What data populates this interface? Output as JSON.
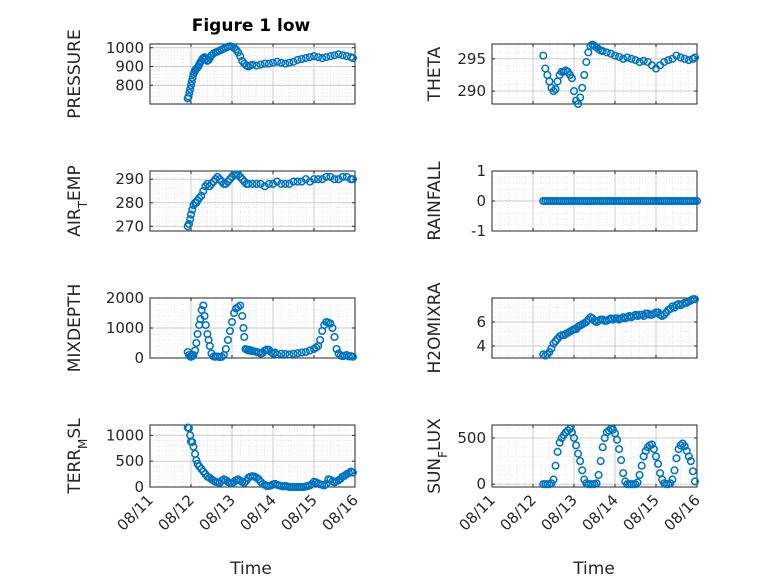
{
  "figure": {
    "title": "Figure 1 low",
    "xlabel": "Time",
    "x_ticks": [
      "08/11",
      "08/12",
      "08/13",
      "08/14",
      "08/15",
      "08/16"
    ],
    "marker_color": "#0072BD",
    "grid": "minor dotted"
  },
  "chart_data": [
    {
      "type": "scatter",
      "ylabel": "PRESSURE",
      "ylim": [
        700,
        1020
      ],
      "yticks": [
        800,
        900,
        1000
      ],
      "x": [
        11.92,
        11.94,
        11.96,
        11.98,
        12.0,
        12.02,
        12.04,
        12.06,
        12.08,
        12.1,
        12.12,
        12.14,
        12.16,
        12.18,
        12.2,
        12.22,
        12.25,
        12.28,
        12.3,
        12.33,
        12.36,
        12.4,
        12.43,
        12.46,
        12.5,
        12.55,
        12.6,
        12.65,
        12.7,
        12.75,
        12.8,
        12.85,
        12.9,
        12.95,
        13.0,
        13.05,
        13.1,
        13.15,
        13.2,
        13.25,
        13.3,
        13.35,
        13.4,
        13.45,
        13.5,
        13.6,
        13.7,
        13.8,
        13.9,
        14.0,
        14.1,
        14.2,
        14.3,
        14.4,
        14.5,
        14.6,
        14.7,
        14.8,
        14.9,
        15.0,
        15.1,
        15.2,
        15.3,
        15.4,
        15.5,
        15.6,
        15.7,
        15.8,
        15.9,
        15.95
      ],
      "y": [
        730,
        740,
        760,
        780,
        800,
        820,
        840,
        860,
        870,
        880,
        885,
        890,
        895,
        900,
        910,
        920,
        930,
        940,
        945,
        950,
        940,
        930,
        935,
        945,
        960,
        970,
        975,
        980,
        985,
        990,
        995,
        1000,
        1005,
        1008,
        1005,
        1000,
        990,
        975,
        955,
        930,
        915,
        905,
        900,
        905,
        910,
        905,
        910,
        915,
        915,
        920,
        925,
        920,
        915,
        920,
        925,
        935,
        940,
        945,
        950,
        955,
        950,
        945,
        950,
        955,
        960,
        965,
        960,
        955,
        950,
        945
      ]
    },
    {
      "type": "scatter",
      "ylabel": "THETA",
      "ylim": [
        288,
        297.3
      ],
      "yticks": [
        290,
        295
      ],
      "x": [
        12.25,
        12.3,
        12.35,
        12.4,
        12.45,
        12.5,
        12.55,
        12.6,
        12.65,
        12.7,
        12.75,
        12.8,
        12.85,
        12.9,
        12.95,
        13.0,
        13.05,
        13.1,
        13.15,
        13.2,
        13.25,
        13.3,
        13.35,
        13.4,
        13.45,
        13.5,
        13.55,
        13.6,
        13.65,
        13.7,
        13.8,
        13.9,
        14.0,
        14.1,
        14.2,
        14.3,
        14.4,
        14.5,
        14.6,
        14.7,
        14.8,
        14.9,
        15.0,
        15.1,
        15.2,
        15.3,
        15.4,
        15.5,
        15.6,
        15.7,
        15.8,
        15.9,
        15.95
      ],
      "y": [
        295.5,
        293.5,
        292.5,
        291.5,
        290.5,
        290.0,
        290.3,
        291.5,
        292.5,
        293.0,
        293.0,
        293.2,
        293.0,
        292.5,
        292.0,
        290.0,
        288.5,
        288.0,
        289.0,
        290.5,
        292.5,
        294.5,
        296.0,
        297.0,
        297.2,
        297.0,
        296.8,
        296.5,
        296.3,
        296.2,
        296.0,
        295.8,
        295.5,
        295.3,
        295.0,
        295.2,
        295.0,
        294.8,
        294.5,
        294.7,
        294.5,
        294.0,
        293.5,
        294.0,
        294.5,
        294.8,
        295.0,
        295.5,
        295.2,
        295.0,
        294.8,
        295.0,
        295.2
      ]
    },
    {
      "type": "scatter",
      "ylabel": "AIR_TEMP",
      "ylim": [
        268,
        293.5
      ],
      "yticks": [
        270,
        280,
        290
      ],
      "x": [
        11.92,
        11.95,
        11.98,
        12.0,
        12.03,
        12.06,
        12.1,
        12.13,
        12.16,
        12.2,
        12.25,
        12.3,
        12.35,
        12.4,
        12.45,
        12.5,
        12.55,
        12.6,
        12.65,
        12.7,
        12.75,
        12.8,
        12.85,
        12.9,
        12.95,
        13.0,
        13.05,
        13.1,
        13.15,
        13.2,
        13.25,
        13.3,
        13.35,
        13.4,
        13.5,
        13.6,
        13.7,
        13.8,
        13.9,
        14.0,
        14.1,
        14.2,
        14.3,
        14.4,
        14.5,
        14.6,
        14.7,
        14.8,
        14.9,
        15.0,
        15.1,
        15.2,
        15.3,
        15.4,
        15.5,
        15.6,
        15.7,
        15.8,
        15.9,
        15.95
      ],
      "y": [
        270,
        271,
        273,
        275,
        277,
        279,
        280,
        280,
        281,
        282,
        283,
        285,
        287,
        288,
        287,
        288,
        289,
        290,
        291,
        290,
        289,
        288,
        288,
        289,
        290,
        291,
        292,
        292,
        292,
        291,
        290,
        289,
        288,
        288,
        288,
        288,
        288,
        287,
        288,
        288,
        289,
        288,
        288,
        288,
        289,
        289,
        289,
        290,
        289,
        290,
        290,
        290,
        291,
        291,
        290,
        290,
        291,
        291,
        290,
        290
      ]
    },
    {
      "type": "scatter",
      "ylabel": "RAINFALL",
      "ylim": [
        -1,
        1
      ],
      "yticks": [
        -1,
        0,
        1
      ],
      "x": [
        12.25,
        12.3,
        12.35,
        12.4,
        12.45,
        12.5,
        12.55,
        12.6,
        12.65,
        12.7,
        12.75,
        12.8,
        12.85,
        12.9,
        12.95,
        13.0,
        13.05,
        13.1,
        13.15,
        13.2,
        13.25,
        13.3,
        13.35,
        13.4,
        13.45,
        13.5,
        13.55,
        13.6,
        13.65,
        13.7,
        13.75,
        13.8,
        13.85,
        13.9,
        13.95,
        14.0,
        14.05,
        14.1,
        14.15,
        14.2,
        14.25,
        14.3,
        14.35,
        14.4,
        14.45,
        14.5,
        14.55,
        14.6,
        14.65,
        14.7,
        14.75,
        14.8,
        14.85,
        14.9,
        14.95,
        15.0,
        15.05,
        15.1,
        15.15,
        15.2,
        15.25,
        15.3,
        15.35,
        15.4,
        15.45,
        15.5,
        15.55,
        15.6,
        15.65,
        15.7,
        15.75,
        15.8,
        15.85,
        15.9,
        15.95,
        16.0
      ],
      "y": [
        0,
        0,
        0,
        0,
        0,
        0,
        0,
        0,
        0,
        0,
        0,
        0,
        0,
        0,
        0,
        0,
        0,
        0,
        0,
        0,
        0,
        0,
        0,
        0,
        0,
        0,
        0,
        0,
        0,
        0,
        0,
        0,
        0,
        0,
        0,
        0,
        0,
        0,
        0,
        0,
        0,
        0,
        0,
        0,
        0,
        0,
        0,
        0,
        0,
        0,
        0,
        0,
        0,
        0,
        0,
        0,
        0,
        0,
        0,
        0,
        0,
        0,
        0,
        0,
        0,
        0,
        0,
        0,
        0,
        0,
        0,
        0,
        0,
        0,
        0,
        0
      ]
    },
    {
      "type": "scatter",
      "ylabel": "MIXDEPTH",
      "ylim": [
        0,
        2000
      ],
      "yticks": [
        0,
        1000,
        2000
      ],
      "x": [
        11.92,
        11.95,
        11.98,
        12.0,
        12.03,
        12.06,
        12.1,
        12.13,
        12.16,
        12.2,
        12.23,
        12.26,
        12.3,
        12.33,
        12.36,
        12.4,
        12.43,
        12.46,
        12.5,
        12.55,
        12.6,
        12.65,
        12.7,
        12.75,
        12.8,
        12.85,
        12.9,
        12.95,
        13.0,
        13.05,
        13.1,
        13.15,
        13.2,
        13.25,
        13.28,
        13.3,
        13.33,
        13.36,
        13.4,
        13.43,
        13.46,
        13.5,
        13.55,
        13.6,
        13.65,
        13.7,
        13.75,
        13.8,
        13.85,
        13.9,
        13.95,
        14.0,
        14.05,
        14.1,
        14.2,
        14.3,
        14.4,
        14.5,
        14.6,
        14.7,
        14.8,
        14.9,
        15.0,
        15.05,
        15.1,
        15.15,
        15.2,
        15.25,
        15.3,
        15.35,
        15.4,
        15.45,
        15.5,
        15.55,
        15.6,
        15.65,
        15.7,
        15.75,
        15.8,
        15.85,
        15.9,
        15.95
      ],
      "y": [
        200,
        100,
        50,
        40,
        60,
        100,
        250,
        500,
        800,
        1100,
        1300,
        1600,
        1750,
        1400,
        1100,
        800,
        600,
        400,
        150,
        50,
        40,
        50,
        30,
        40,
        100,
        300,
        600,
        900,
        1200,
        1500,
        1650,
        1700,
        1750,
        1400,
        1000,
        700,
        300,
        280,
        250,
        270,
        240,
        230,
        220,
        200,
        180,
        150,
        170,
        250,
        280,
        270,
        200,
        150,
        180,
        120,
        140,
        130,
        120,
        140,
        160,
        180,
        200,
        250,
        300,
        350,
        400,
        600,
        900,
        1100,
        1200,
        1180,
        1150,
        1000,
        700,
        300,
        150,
        80,
        60,
        80,
        100,
        50,
        60,
        40
      ]
    },
    {
      "type": "scatter",
      "ylabel": "H2OMIXRA",
      "ylim": [
        3.0,
        8.0
      ],
      "yticks": [
        4,
        6
      ],
      "x": [
        12.25,
        12.3,
        12.35,
        12.4,
        12.45,
        12.5,
        12.55,
        12.6,
        12.65,
        12.7,
        12.75,
        12.8,
        12.85,
        12.9,
        12.95,
        13.0,
        13.05,
        13.1,
        13.15,
        13.2,
        13.25,
        13.3,
        13.35,
        13.4,
        13.45,
        13.5,
        13.55,
        13.6,
        13.65,
        13.7,
        13.75,
        13.8,
        13.85,
        13.9,
        13.95,
        14.0,
        14.05,
        14.1,
        14.15,
        14.2,
        14.25,
        14.3,
        14.35,
        14.4,
        14.45,
        14.5,
        14.55,
        14.6,
        14.65,
        14.7,
        14.75,
        14.8,
        14.85,
        14.9,
        14.95,
        15.0,
        15.05,
        15.1,
        15.15,
        15.2,
        15.25,
        15.3,
        15.35,
        15.4,
        15.45,
        15.5,
        15.55,
        15.6,
        15.65,
        15.7,
        15.75,
        15.8,
        15.85,
        15.9,
        15.95
      ],
      "y": [
        3.3,
        3.2,
        3.3,
        3.5,
        3.8,
        4.2,
        4.4,
        4.6,
        4.8,
        4.9,
        4.9,
        5.0,
        5.1,
        5.2,
        5.3,
        5.4,
        5.4,
        5.6,
        5.7,
        5.8,
        5.9,
        6.0,
        6.2,
        6.4,
        6.3,
        6.1,
        6.0,
        6.1,
        6.2,
        6.2,
        6.1,
        6.1,
        6.2,
        6.3,
        6.2,
        6.3,
        6.3,
        6.2,
        6.3,
        6.4,
        6.3,
        6.4,
        6.5,
        6.4,
        6.5,
        6.6,
        6.5,
        6.6,
        6.6,
        6.5,
        6.7,
        6.7,
        6.6,
        6.6,
        6.7,
        6.8,
        6.8,
        6.6,
        6.5,
        6.6,
        6.8,
        7.0,
        7.1,
        7.3,
        7.2,
        7.4,
        7.5,
        7.4,
        7.5,
        7.6,
        7.6,
        7.7,
        7.8,
        7.9,
        7.9
      ]
    },
    {
      "type": "scatter",
      "ylabel": "TERR_MSL",
      "ylim": [
        0,
        1200
      ],
      "yticks": [
        0,
        500,
        1000
      ],
      "x": [
        11.92,
        11.95,
        11.98,
        12.0,
        12.03,
        12.06,
        12.1,
        12.13,
        12.16,
        12.2,
        12.25,
        12.3,
        12.35,
        12.4,
        12.45,
        12.5,
        12.55,
        12.6,
        12.65,
        12.7,
        12.75,
        12.8,
        12.85,
        12.9,
        12.95,
        13.0,
        13.05,
        13.1,
        13.15,
        13.2,
        13.25,
        13.3,
        13.35,
        13.4,
        13.45,
        13.5,
        13.55,
        13.6,
        13.65,
        13.7,
        13.75,
        13.8,
        13.85,
        13.9,
        13.95,
        14.0,
        14.05,
        14.1,
        14.15,
        14.2,
        14.25,
        14.3,
        14.35,
        14.4,
        14.45,
        14.5,
        14.55,
        14.6,
        14.65,
        14.7,
        14.75,
        14.8,
        14.85,
        14.9,
        14.95,
        15.0,
        15.05,
        15.1,
        15.15,
        15.2,
        15.25,
        15.3,
        15.35,
        15.4,
        15.45,
        15.5,
        15.55,
        15.6,
        15.65,
        15.7,
        15.75,
        15.8,
        15.85,
        15.9,
        15.95
      ],
      "y": [
        1150,
        1140,
        1000,
        880,
        870,
        780,
        640,
        520,
        450,
        400,
        350,
        300,
        250,
        200,
        180,
        150,
        120,
        100,
        90,
        80,
        120,
        150,
        130,
        100,
        80,
        70,
        100,
        130,
        150,
        120,
        100,
        80,
        120,
        180,
        200,
        210,
        200,
        180,
        150,
        100,
        60,
        40,
        20,
        20,
        30,
        50,
        60,
        40,
        30,
        20,
        10,
        20,
        10,
        0,
        0,
        0,
        0,
        0,
        0,
        0,
        0,
        10,
        20,
        30,
        60,
        100,
        90,
        70,
        50,
        40,
        30,
        60,
        150,
        140,
        110,
        90,
        110,
        130,
        160,
        200,
        220,
        250,
        270,
        300,
        280
      ]
    },
    {
      "type": "scatter",
      "ylabel": "SUN_FLUX",
      "ylim": [
        -30,
        640
      ],
      "yticks": [
        0,
        500
      ],
      "x": [
        12.25,
        12.3,
        12.35,
        12.4,
        12.45,
        12.5,
        12.55,
        12.6,
        12.65,
        12.7,
        12.75,
        12.8,
        12.85,
        12.9,
        12.95,
        13.0,
        13.05,
        13.1,
        13.15,
        13.2,
        13.25,
        13.3,
        13.35,
        13.4,
        13.45,
        13.5,
        13.55,
        13.6,
        13.65,
        13.7,
        13.75,
        13.8,
        13.85,
        13.9,
        13.95,
        14.0,
        14.05,
        14.1,
        14.15,
        14.2,
        14.25,
        14.3,
        14.35,
        14.4,
        14.45,
        14.5,
        14.55,
        14.6,
        14.65,
        14.7,
        14.75,
        14.8,
        14.85,
        14.9,
        14.95,
        15.0,
        15.05,
        15.1,
        15.15,
        15.2,
        15.25,
        15.3,
        15.35,
        15.4,
        15.45,
        15.5,
        15.55,
        15.6,
        15.65,
        15.7,
        15.75,
        15.8,
        15.85,
        15.9,
        15.95
      ],
      "y": [
        0,
        0,
        0,
        0,
        10,
        50,
        200,
        350,
        450,
        500,
        530,
        560,
        580,
        600,
        560,
        500,
        420,
        330,
        250,
        150,
        50,
        10,
        0,
        0,
        0,
        0,
        10,
        100,
        250,
        400,
        500,
        560,
        580,
        600,
        590,
        550,
        480,
        380,
        260,
        120,
        30,
        0,
        0,
        0,
        0,
        0,
        20,
        100,
        200,
        300,
        360,
        400,
        420,
        430,
        380,
        300,
        220,
        120,
        50,
        10,
        0,
        0,
        10,
        50,
        150,
        280,
        380,
        420,
        440,
        410,
        360,
        300,
        250,
        140,
        30
      ]
    }
  ]
}
